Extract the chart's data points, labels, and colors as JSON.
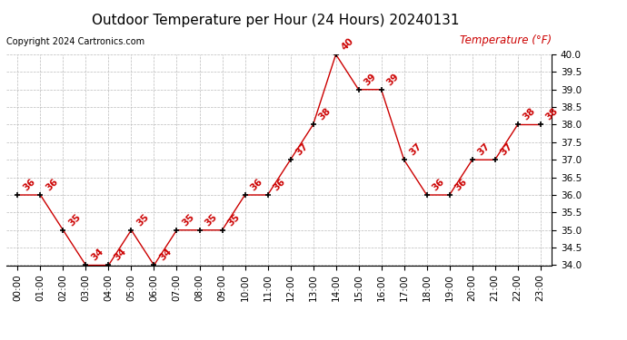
{
  "title": "Outdoor Temperature per Hour (24 Hours) 20240131",
  "copyright": "Copyright 2024 Cartronics.com",
  "legend_label": "Temperature (°F)",
  "hours": [
    "00:00",
    "01:00",
    "02:00",
    "03:00",
    "04:00",
    "05:00",
    "06:00",
    "07:00",
    "08:00",
    "09:00",
    "10:00",
    "11:00",
    "12:00",
    "13:00",
    "14:00",
    "15:00",
    "16:00",
    "17:00",
    "18:00",
    "19:00",
    "20:00",
    "21:00",
    "22:00",
    "23:00"
  ],
  "temps": [
    36,
    36,
    35,
    34,
    34,
    35,
    34,
    35,
    35,
    35,
    36,
    36,
    37,
    38,
    40,
    39,
    39,
    37,
    36,
    36,
    37,
    37,
    38,
    38
  ],
  "ylim": [
    34.0,
    40.0
  ],
  "yticks": [
    34.0,
    34.5,
    35.0,
    35.5,
    36.0,
    36.5,
    37.0,
    37.5,
    38.0,
    38.5,
    39.0,
    39.5,
    40.0
  ],
  "line_color": "#cc0000",
  "marker_color": "#000000",
  "label_color": "#cc0000",
  "title_color": "#000000",
  "copyright_color": "#000000",
  "legend_color": "#cc0000",
  "bg_color": "#ffffff",
  "grid_color": "#bbbbbb",
  "title_fontsize": 11,
  "copyright_fontsize": 7,
  "label_fontsize": 7.5,
  "tick_fontsize": 7.5,
  "legend_fontsize": 8.5
}
